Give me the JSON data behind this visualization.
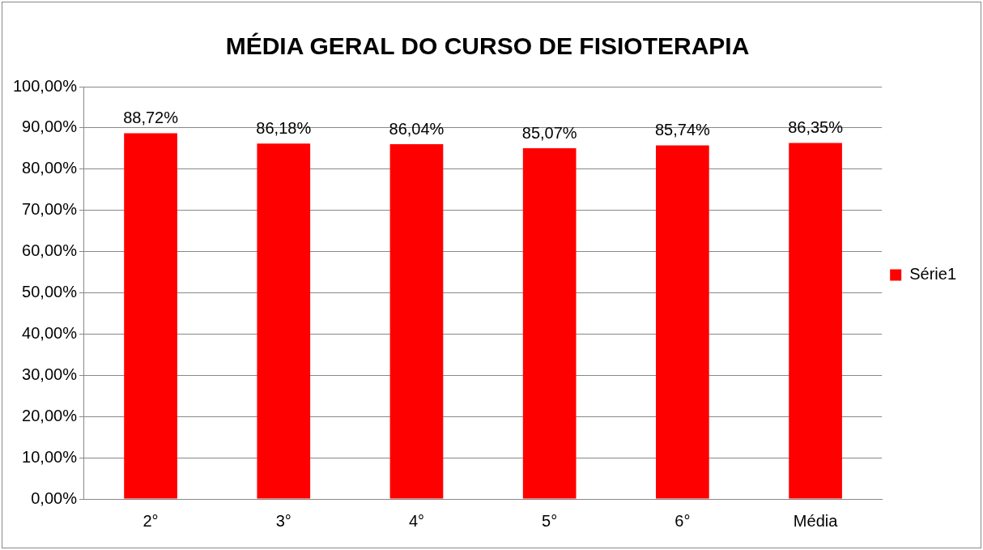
{
  "chart_data": {
    "type": "bar",
    "title": "MÉDIA GERAL DO CURSO DE FISIOTERAPIA",
    "categories": [
      "2°",
      "3°",
      "4°",
      "5°",
      "6°",
      "Média"
    ],
    "series": [
      {
        "name": "Série1",
        "color": "#ff0000",
        "values": [
          88.72,
          86.18,
          86.04,
          85.07,
          85.74,
          86.35
        ],
        "value_labels": [
          "88,72%",
          "86,18%",
          "86,04%",
          "85,07%",
          "85,74%",
          "86,35%"
        ]
      }
    ],
    "ylim": [
      0,
      100
    ],
    "yticks": [
      {
        "value": 0,
        "label": "0,00%"
      },
      {
        "value": 10,
        "label": "10,00%"
      },
      {
        "value": 20,
        "label": "20,00%"
      },
      {
        "value": 30,
        "label": "30,00%"
      },
      {
        "value": 40,
        "label": "40,00%"
      },
      {
        "value": 50,
        "label": "50,00%"
      },
      {
        "value": 60,
        "label": "60,00%"
      },
      {
        "value": 70,
        "label": "70,00%"
      },
      {
        "value": 80,
        "label": "80,00%"
      },
      {
        "value": 90,
        "label": "90,00%"
      },
      {
        "value": 100,
        "label": "100,00%"
      }
    ],
    "grid": "y",
    "legend": "right"
  }
}
